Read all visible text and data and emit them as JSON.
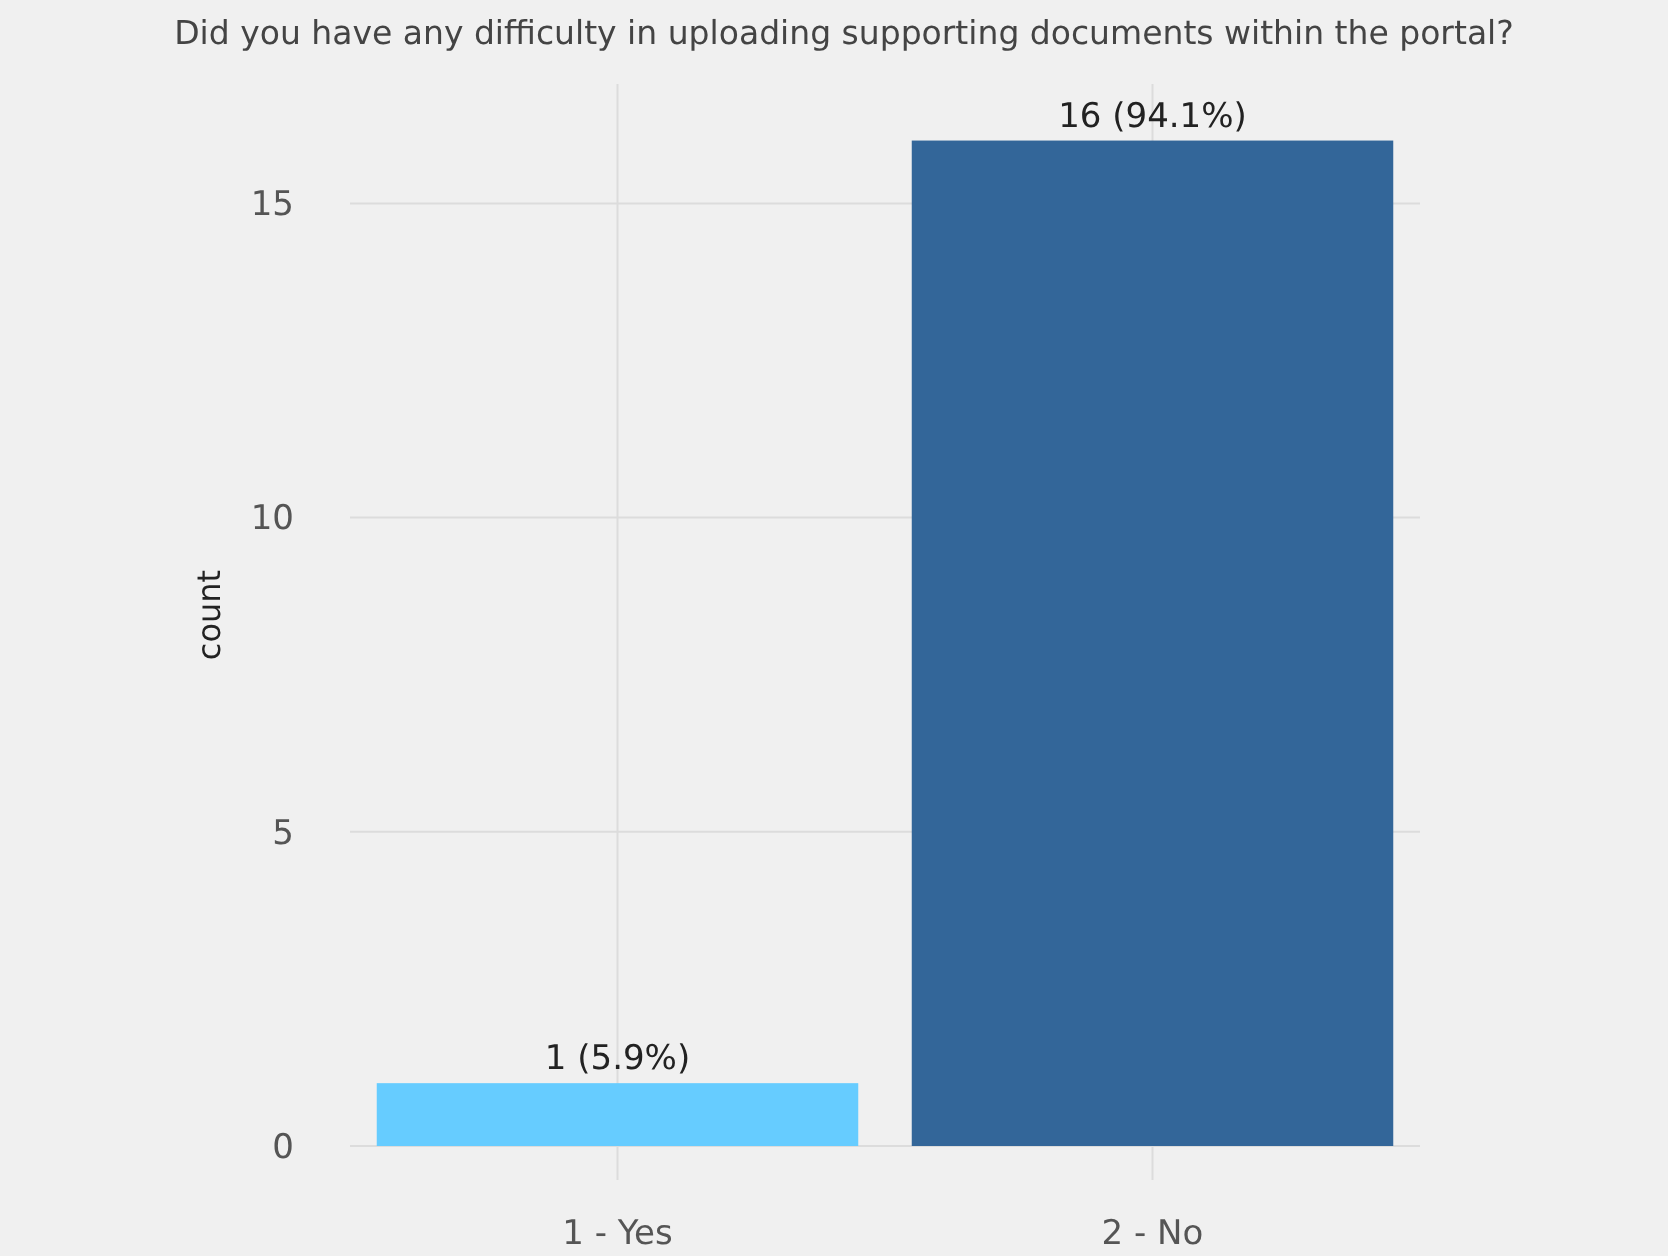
{
  "chart_data": {
    "type": "bar",
    "title": "Did you have any difficulty in uploading supporting documents within the portal?",
    "ylabel": "count",
    "categories": [
      "1 - Yes",
      "2 - No"
    ],
    "values": [
      1,
      16
    ],
    "colors": [
      "#66ccff",
      "#336699"
    ],
    "value_labels": [
      "1 (5.9%)",
      "16 (94.1%)"
    ],
    "ylim": [
      0,
      16.9
    ],
    "yticks": [
      0,
      5,
      10,
      15
    ],
    "grid": true
  }
}
